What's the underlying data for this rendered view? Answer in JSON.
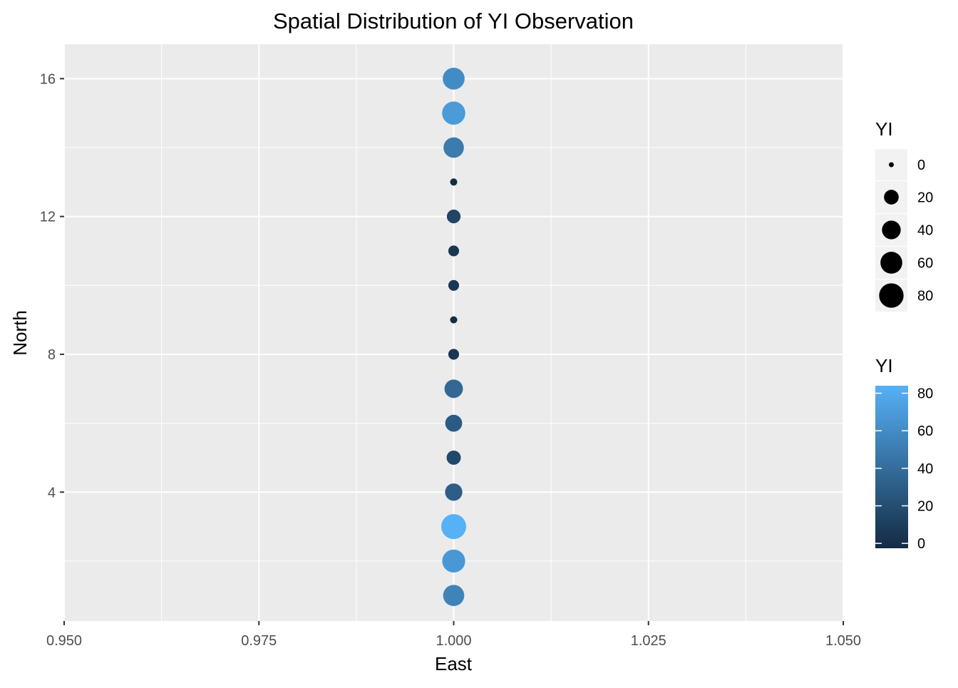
{
  "chart_data": {
    "type": "scatter",
    "title": "Spatial Distribution of YI Observation",
    "xlabel": "East",
    "ylabel": "North",
    "xlim": [
      0.95,
      1.05
    ],
    "ylim": [
      0.26,
      17.0
    ],
    "x_ticks": [
      0.95,
      0.975,
      1.0,
      1.025,
      1.05
    ],
    "x_tick_labels": [
      "0.950",
      "0.975",
      "1.000",
      "1.025",
      "1.050"
    ],
    "x_minor_ticks": [
      0.9625,
      0.9875,
      1.0125,
      1.0375
    ],
    "y_ticks": [
      4,
      8,
      12,
      16
    ],
    "y_tick_labels": [
      "4",
      "8",
      "12",
      "16"
    ],
    "y_minor_ticks": [
      2,
      6,
      10,
      14
    ],
    "grid": true,
    "points": [
      {
        "east": 1.0,
        "north": 1,
        "yi": 55
      },
      {
        "east": 1.0,
        "north": 2,
        "yi": 68
      },
      {
        "east": 1.0,
        "north": 3,
        "yi": 84
      },
      {
        "east": 1.0,
        "north": 4,
        "yi": 32
      },
      {
        "east": 1.0,
        "north": 5,
        "yi": 18
      },
      {
        "east": 1.0,
        "north": 6,
        "yi": 30
      },
      {
        "east": 1.0,
        "north": 7,
        "yi": 38
      },
      {
        "east": 1.0,
        "north": 8,
        "yi": 7
      },
      {
        "east": 1.0,
        "north": 9,
        "yi": 1
      },
      {
        "east": 1.0,
        "north": 10,
        "yi": 7
      },
      {
        "east": 1.0,
        "north": 11,
        "yi": 7
      },
      {
        "east": 1.0,
        "north": 12,
        "yi": 16
      },
      {
        "east": 1.0,
        "north": 13,
        "yi": 1
      },
      {
        "east": 1.0,
        "north": 14,
        "yi": 50
      },
      {
        "east": 1.0,
        "north": 15,
        "yi": 70
      },
      {
        "east": 1.0,
        "north": 16,
        "yi": 60
      }
    ],
    "legend_size": {
      "title": "YI",
      "breaks": [
        0,
        20,
        40,
        60,
        80
      ],
      "labels": [
        "0",
        "20",
        "40",
        "60",
        "80"
      ]
    },
    "legend_color": {
      "title": "YI",
      "breaks": [
        0,
        20,
        40,
        60,
        80
      ],
      "labels": [
        "0",
        "20",
        "40",
        "60",
        "80"
      ],
      "low_color": "#132b43",
      "high_color": "#56b1f7"
    },
    "legend_position": "right",
    "panel_background": "#ebebeb",
    "grid_color": "#ffffff",
    "size_legend_key_background": "#f2f2f2"
  }
}
